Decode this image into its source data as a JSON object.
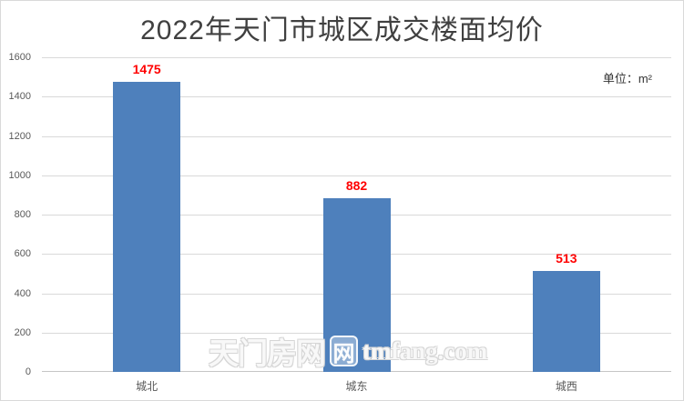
{
  "unit_label": "单位：m²",
  "chart_data": {
    "type": "bar",
    "title": "2022年天门市城区成交楼面均价",
    "categories": [
      "城北",
      "城东",
      "城西"
    ],
    "values": [
      1475,
      882,
      513
    ],
    "xlabel": "",
    "ylabel": "",
    "ylim": [
      0,
      1600
    ],
    "ytick_step": 200,
    "yticks": [
      0,
      200,
      400,
      600,
      800,
      1000,
      1200,
      1400,
      1600
    ],
    "grid": "horizontal",
    "legend": "none",
    "bar_color": "#4E80BC",
    "value_label_color": "#FF0000",
    "title_color": "#404040",
    "tick_color": "#595959",
    "gridline_color": "#D9D9D9"
  },
  "watermark": {
    "site_name": "天门房网",
    "logo_glyph": "网",
    "site_url": "tmfang.com"
  }
}
